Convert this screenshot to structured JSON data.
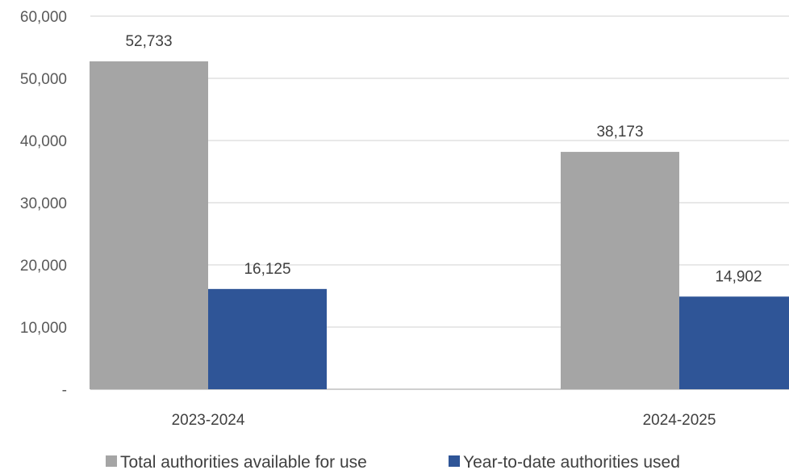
{
  "chart_data": {
    "type": "bar",
    "title": "",
    "xlabel": "",
    "ylabel": "",
    "categories": [
      "2023-2024",
      "2024-2025"
    ],
    "series": [
      {
        "name": "Total authorities available for use",
        "values": [
          52733,
          38173
        ],
        "color": "#a5a5a5"
      },
      {
        "name": "Year-to-date authorities used",
        "values": [
          16125,
          14902
        ],
        "color": "#2f5597"
      }
    ],
    "data_labels": [
      [
        "52,733",
        "38,173"
      ],
      [
        "16,125",
        "14,902"
      ]
    ],
    "ylim": [
      0,
      60000
    ],
    "yticks": [
      0,
      10000,
      20000,
      30000,
      40000,
      50000,
      60000
    ],
    "ytick_labels": [
      "-",
      "10,000",
      "20,000",
      "30,000",
      "40,000",
      "50,000",
      "60,000"
    ],
    "grid": true,
    "legend_position": "bottom"
  }
}
